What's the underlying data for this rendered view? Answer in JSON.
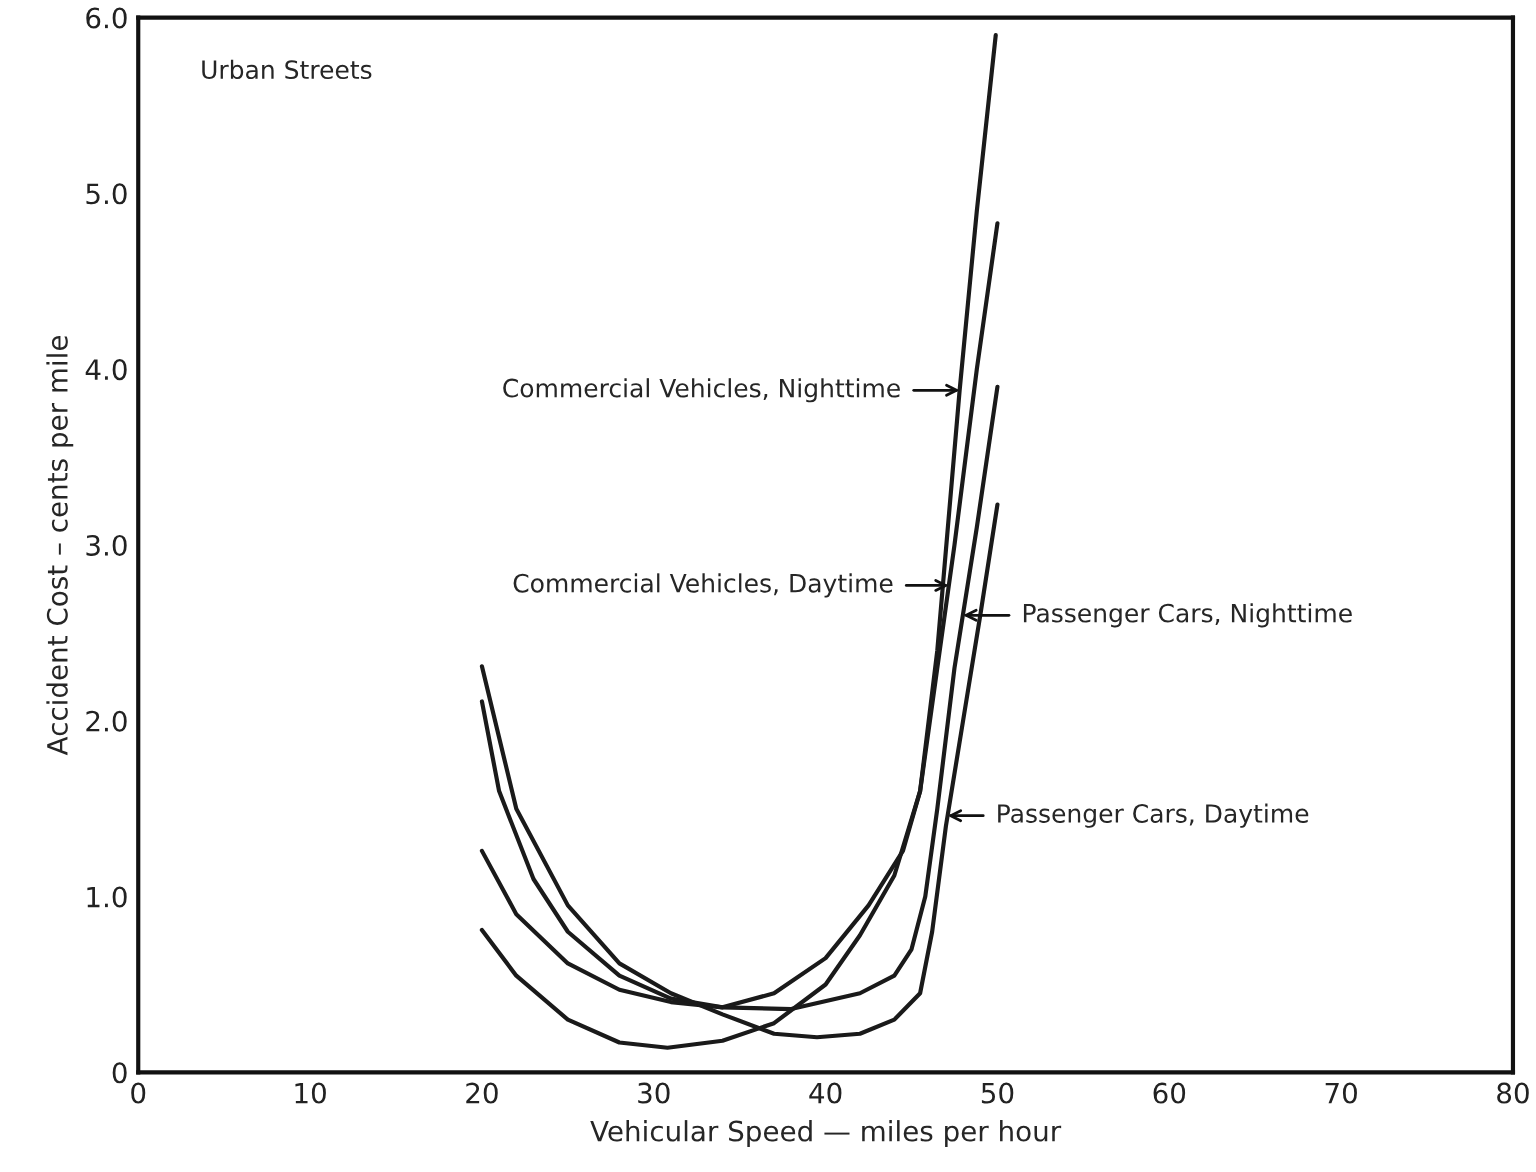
{
  "chart_data": {
    "type": "line",
    "xlabel": "Vehicular Speed — miles per hour",
    "ylabel": "Accident Cost – cents per mile",
    "xlim": [
      0,
      80
    ],
    "ylim": [
      0,
      6
    ],
    "xticks": [
      0,
      10,
      20,
      30,
      40,
      50,
      60,
      70,
      80
    ],
    "yticks": [
      0,
      {
        "value": 1,
        "label": "1.0"
      },
      {
        "value": 2,
        "label": "2.0"
      },
      {
        "value": 3,
        "label": "3.0"
      },
      {
        "value": 4,
        "label": "4.0"
      },
      {
        "value": 5,
        "label": "5.0"
      },
      {
        "value": 6,
        "label": "6.0"
      }
    ],
    "grid": false,
    "marker": "none",
    "line_style": "solid",
    "series": [
      {
        "color": "#1a1a1a",
        "x": [
          20,
          22,
          25,
          28,
          30.8,
          34,
          37,
          40,
          42,
          44,
          45.5,
          46.5,
          47.8,
          48.8,
          49.9
        ],
        "values": [
          0.81,
          0.55,
          0.3,
          0.17,
          0.14,
          0.18,
          0.28,
          0.5,
          0.78,
          1.12,
          1.6,
          2.4,
          3.88,
          4.9,
          5.9
        ]
      },
      {
        "color": "#1a1a1a",
        "x": [
          20,
          21,
          23,
          25,
          28,
          31,
          34,
          37,
          40,
          42.5,
          44.5,
          45.5,
          46.5,
          47.5,
          48.8,
          50
        ],
        "values": [
          2.11,
          1.6,
          1.1,
          0.8,
          0.55,
          0.42,
          0.37,
          0.45,
          0.65,
          0.95,
          1.26,
          1.6,
          2.3,
          3.0,
          4.0,
          4.83
        ]
      },
      {
        "color": "#1a1a1a",
        "x": [
          20,
          22,
          25,
          28,
          31,
          34,
          38,
          42,
          44,
          45,
          45.8,
          46.5,
          47.5,
          48.8,
          50
        ],
        "values": [
          1.26,
          0.9,
          0.62,
          0.47,
          0.4,
          0.37,
          0.36,
          0.45,
          0.55,
          0.7,
          1.0,
          1.5,
          2.3,
          3.1,
          3.9
        ]
      },
      {
        "color": "#1a1a1a",
        "x": [
          20,
          22,
          25,
          28,
          31,
          34,
          37,
          39.5,
          42,
          44,
          45.5,
          46.2,
          47,
          48,
          49,
          50
        ],
        "values": [
          2.31,
          1.5,
          0.95,
          0.62,
          0.45,
          0.33,
          0.22,
          0.2,
          0.22,
          0.3,
          0.45,
          0.8,
          1.4,
          2.0,
          2.6,
          3.23
        ]
      }
    ],
    "annotations": [
      "Urban Streets",
      {
        "text": "Commercial Vehicles, Nighttime",
        "x": 47.8,
        "y": 3.88
      },
      {
        "text": "Commercial Vehicles, Daytime",
        "x": 47.17,
        "y": 2.77
      },
      {
        "text": "Passenger Cars, Nighttime",
        "x": 48.0,
        "y": 2.6
      },
      {
        "text": "Passenger Cars, Daytime",
        "x": 47.1,
        "y": 1.46
      }
    ]
  }
}
